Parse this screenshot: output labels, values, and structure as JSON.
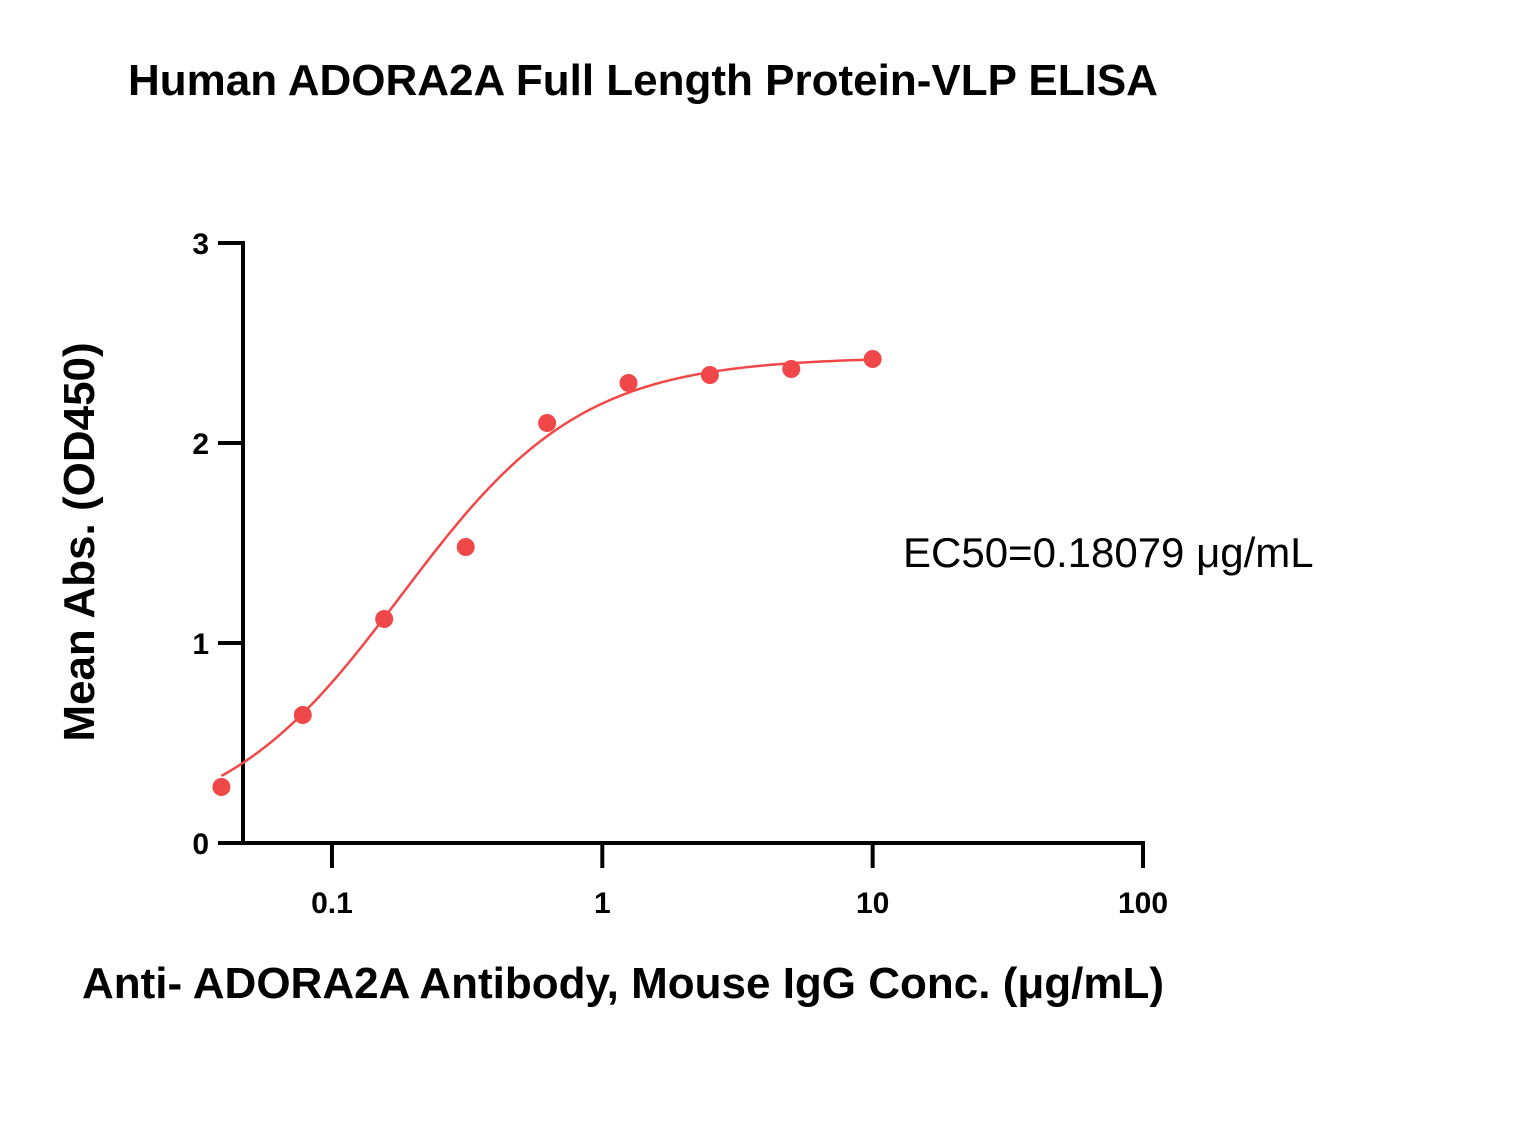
{
  "chart_data": {
    "type": "scatter",
    "title": "Human ADORA2A Full Length Protein-VLP ELISA",
    "xlabel": "Anti- ADORA2A Antibody, Mouse IgG Conc. (μg/mL)",
    "ylabel": "Mean Abs. (OD450)",
    "x_scale": "log",
    "xlim": [
      0.02,
      100
    ],
    "ylim": [
      0,
      3
    ],
    "x_ticks": [
      {
        "value": 0.1,
        "label": "0.1"
      },
      {
        "value": 1,
        "label": "1"
      },
      {
        "value": 10,
        "label": "10"
      },
      {
        "value": 100,
        "label": "100"
      }
    ],
    "y_ticks": [
      {
        "value": 0,
        "label": "0"
      },
      {
        "value": 1,
        "label": "1"
      },
      {
        "value": 2,
        "label": "2"
      },
      {
        "value": 3,
        "label": "3"
      }
    ],
    "grid": false,
    "legend": "none",
    "color": "#f04848",
    "series": [
      {
        "points": [
          {
            "x": 0.039,
            "y": 0.28
          },
          {
            "x": 0.078,
            "y": 0.64
          },
          {
            "x": 0.156,
            "y": 1.12
          },
          {
            "x": 0.3125,
            "y": 1.48
          },
          {
            "x": 0.625,
            "y": 2.1
          },
          {
            "x": 1.25,
            "y": 2.3
          },
          {
            "x": 2.5,
            "y": 2.34
          },
          {
            "x": 5,
            "y": 2.37
          },
          {
            "x": 10,
            "y": 2.42
          }
        ]
      }
    ],
    "fit": {
      "type": "4PL",
      "bottom": 0.05,
      "top": 2.43,
      "ec50": 0.18079,
      "hill": 1.3,
      "x_range": [
        0.039,
        10
      ]
    },
    "annotations": [
      {
        "text": "EC50=0.18079 μg/mL"
      }
    ]
  }
}
